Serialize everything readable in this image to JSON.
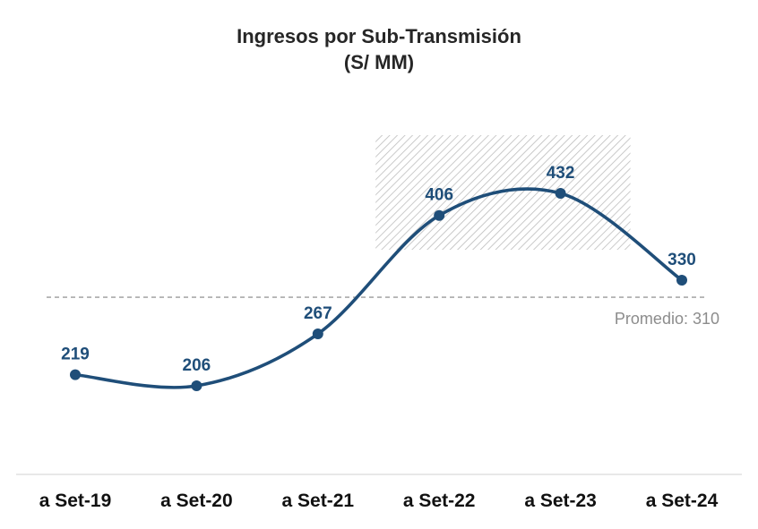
{
  "chart_data": {
    "type": "line",
    "title": "Ingresos por Sub-Transmisión",
    "subtitle": "(S/ MM)",
    "categories": [
      "a Set-19",
      "a Set-20",
      "a Set-21",
      "a Set-22",
      "a Set-23",
      "a Set-24"
    ],
    "values": [
      219,
      206,
      267,
      406,
      432,
      330
    ],
    "data_labels": [
      "219",
      "206",
      "267",
      "406",
      "432",
      "330"
    ],
    "average": 310,
    "average_label": "Promedio: 310",
    "highlight_range": [
      "a Set-22",
      "a Set-23"
    ],
    "line_color": "#1f4e79",
    "grid": false,
    "legend": "none"
  }
}
